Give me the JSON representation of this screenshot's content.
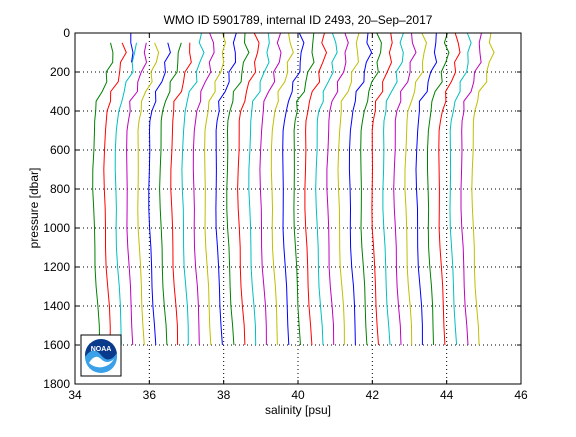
{
  "chart_data": {
    "type": "line",
    "title": "WMO ID 5901789, internal ID 2493, 20–Sep–2017",
    "xlabel": "salinity [psu]",
    "ylabel": "pressure [dbar]",
    "xlim": [
      34,
      46
    ],
    "ylim": [
      0,
      1800
    ],
    "y_reversed": true,
    "xticks": [
      34,
      36,
      38,
      40,
      42,
      44,
      46
    ],
    "yticks": [
      0,
      200,
      400,
      600,
      800,
      1000,
      1200,
      1400,
      1600,
      1800
    ],
    "grid": true,
    "grid_style": "dotted",
    "legend": false,
    "logo": "NOAA",
    "logo_position": "bottom-left",
    "pressure": [
      0,
      50,
      100,
      150,
      200,
      250,
      300,
      350,
      400,
      450,
      500,
      600,
      700,
      800,
      900,
      1000,
      1100,
      1200,
      1300,
      1400,
      1500,
      1600
    ],
    "offset_step": 0.3,
    "base_profile": [
      34.98,
      35.0,
      35.02,
      34.97,
      34.9,
      34.82,
      34.72,
      34.62,
      34.57,
      34.53,
      34.51,
      34.5,
      34.49,
      34.49,
      34.5,
      34.51,
      34.53,
      34.55,
      34.58,
      34.61,
      34.64,
      34.66
    ],
    "series": [
      {
        "start": 1,
        "color": "#008000"
      },
      {
        "start": 1,
        "color": "#ff0000"
      },
      {
        "start": 1,
        "color": "#00bfbf"
      },
      {
        "start": 1,
        "color": "#bf00bf"
      },
      {
        "start": 1,
        "color": "#bfbf00"
      },
      {
        "start": 1,
        "color": "#0000ff"
      },
      {
        "start": 1,
        "color": "#008000"
      },
      {
        "start": 1,
        "color": "#ff0000"
      },
      {
        "start": 0,
        "color": "#00bfbf"
      },
      {
        "start": 0,
        "color": "#bf00bf"
      },
      {
        "start": 0,
        "color": "#bfbf00"
      },
      {
        "start": 0,
        "color": "#0000ff"
      },
      {
        "start": 0,
        "color": "#008000"
      },
      {
        "start": 0,
        "color": "#ff0000"
      },
      {
        "start": 0,
        "color": "#00bfbf"
      },
      {
        "start": 0,
        "color": "#bf00bf"
      },
      {
        "start": 0,
        "color": "#bfbf00"
      },
      {
        "start": 0,
        "color": "#0000ff"
      },
      {
        "start": 0,
        "color": "#008000"
      },
      {
        "start": 0,
        "color": "#ff0000"
      },
      {
        "start": 0,
        "color": "#00bfbf"
      },
      {
        "start": 0,
        "color": "#bf00bf"
      },
      {
        "start": 0,
        "color": "#bfbf00"
      },
      {
        "start": 0,
        "color": "#0000ff"
      },
      {
        "start": 0,
        "color": "#008000"
      },
      {
        "start": 0,
        "color": "#ff0000"
      },
      {
        "start": 0,
        "color": "#00bfbf"
      },
      {
        "start": 0,
        "color": "#bf00bf"
      },
      {
        "start": 0,
        "color": "#bfbf00"
      },
      {
        "start": 0,
        "color": "#0000ff"
      },
      {
        "start": 0,
        "color": "#008000"
      },
      {
        "start": 0,
        "color": "#ff0000"
      },
      {
        "start": 0,
        "color": "#00bfbf"
      },
      {
        "start": 0,
        "color": "#bf00bf"
      },
      {
        "start": 0,
        "color": "#bfbf00"
      }
    ],
    "short_profile": {
      "color": "#0000ff",
      "x": [
        35.5,
        35.5,
        35.56,
        35.52
      ],
      "pressure": [
        0,
        50,
        100,
        150
      ]
    }
  }
}
